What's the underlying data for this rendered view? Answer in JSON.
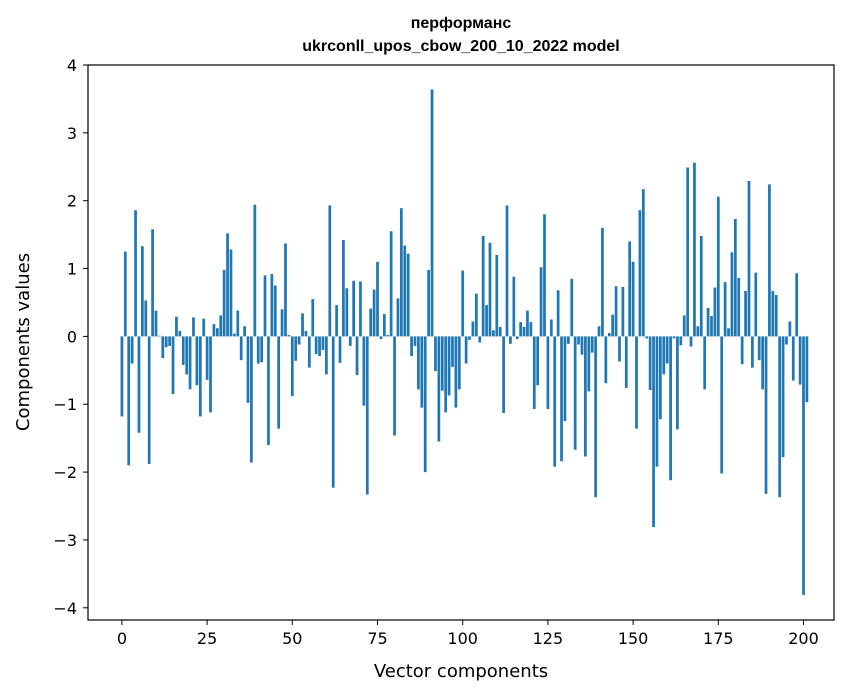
{
  "chart_data": {
    "type": "bar",
    "title_lines": [
      "перформанс",
      "ukrconll_upos_cbow_200_10_2022 model"
    ],
    "xlabel": "Vector components",
    "ylabel": "Components values",
    "xlim": [
      -9.95,
      208.95
    ],
    "ylim": [
      -4.18,
      4.0
    ],
    "x_ticks": [
      0,
      25,
      50,
      75,
      100,
      125,
      150,
      175,
      200
    ],
    "y_ticks": [
      -4,
      -3,
      -2,
      -1,
      0,
      1,
      2,
      3,
      4
    ],
    "x_tick_labels": [
      "0",
      "25",
      "50",
      "75",
      "100",
      "125",
      "150",
      "175",
      "200"
    ],
    "y_tick_labels": [
      "−4",
      "−3",
      "−2",
      "−1",
      "0",
      "1",
      "2",
      "3",
      "4"
    ],
    "grid": false,
    "bar_color": "#1f77b4",
    "values": [
      -1.18,
      1.25,
      -1.9,
      -0.4,
      1.86,
      -1.42,
      1.33,
      0.53,
      -1.88,
      1.58,
      0.38,
      0.01,
      -0.32,
      -0.16,
      -0.14,
      -0.85,
      0.29,
      0.08,
      -0.42,
      -0.56,
      -0.78,
      0.28,
      -0.72,
      -1.18,
      0.26,
      -0.64,
      -1.12,
      0.18,
      0.12,
      0.31,
      0.98,
      1.52,
      1.28,
      0.04,
      0.38,
      -0.35,
      0.15,
      -0.98,
      -1.86,
      1.94,
      -0.4,
      -0.38,
      0.9,
      -1.6,
      0.92,
      0.75,
      -1.36,
      0.4,
      1.37,
      0.02,
      -0.88,
      -0.36,
      -0.12,
      0.34,
      0.08,
      -0.46,
      0.55,
      -0.26,
      -0.29,
      -0.2,
      -0.56,
      1.93,
      -2.23,
      0.46,
      -0.39,
      1.42,
      0.71,
      -0.14,
      0.82,
      -0.57,
      0.81,
      -1.02,
      -2.33,
      0.41,
      0.69,
      1.1,
      -0.04,
      0.33,
      0.02,
      1.55,
      -1.46,
      0.56,
      1.89,
      1.34,
      1.22,
      -0.29,
      -0.14,
      -0.78,
      -1.05,
      -2.0,
      0.98,
      3.64,
      -0.51,
      -1.55,
      -0.8,
      -1.12,
      -0.87,
      -0.45,
      -1.05,
      -0.78,
      0.97,
      -0.4,
      -0.05,
      0.22,
      0.63,
      -0.09,
      1.48,
      0.46,
      1.38,
      0.09,
      1.2,
      0.14,
      -1.13,
      1.93,
      -0.11,
      0.88,
      -0.04,
      0.21,
      0.14,
      0.38,
      0.21,
      -1.07,
      -0.72,
      1.02,
      1.8,
      -1.07,
      0.25,
      -1.92,
      0.68,
      -1.84,
      -1.25,
      -0.11,
      0.85,
      -1.67,
      -0.12,
      -0.27,
      -1.77,
      -0.81,
      -0.24,
      -2.37,
      0.15,
      1.6,
      -0.69,
      0.05,
      0.32,
      0.74,
      -0.37,
      0.73,
      -0.76,
      1.4,
      1.1,
      -1.36,
      1.86,
      2.17,
      -0.03,
      -0.79,
      -2.81,
      -1.92,
      -1.22,
      -0.56,
      -0.4,
      -2.12,
      -0.03,
      -1.37,
      -0.13,
      0.31,
      2.49,
      -0.15,
      2.56,
      0.15,
      1.48,
      -0.78,
      0.42,
      0.3,
      0.72,
      2.06,
      -2.02,
      0.8,
      0.12,
      1.24,
      1.73,
      0.86,
      -0.41,
      0.67,
      2.29,
      -0.46,
      0.94,
      -0.35,
      -0.78,
      -2.32,
      2.24,
      0.67,
      0.61,
      -2.37,
      -1.78,
      -0.12,
      0.22,
      -0.65,
      0.93,
      -0.71,
      -3.81,
      -0.97
    ]
  }
}
